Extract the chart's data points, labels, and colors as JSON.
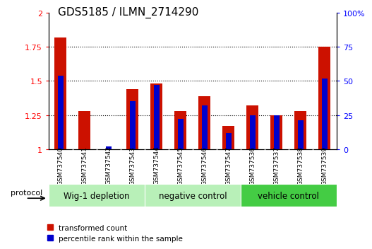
{
  "title": "GDS5185 / ILMN_2714290",
  "samples": [
    "GSM737540",
    "GSM737541",
    "GSM737542",
    "GSM737543",
    "GSM737544",
    "GSM737545",
    "GSM737546",
    "GSM737547",
    "GSM737536",
    "GSM737537",
    "GSM737538",
    "GSM737539"
  ],
  "transformed_count": [
    1.82,
    1.28,
    1.0,
    1.44,
    1.48,
    1.28,
    1.39,
    1.17,
    1.32,
    1.25,
    1.28,
    1.75
  ],
  "percentile_rank": [
    0.54,
    0.0,
    0.02,
    0.35,
    0.47,
    0.22,
    0.32,
    0.12,
    0.25,
    0.25,
    0.21,
    0.52
  ],
  "ylim_left": [
    1.0,
    2.0
  ],
  "ylim_right": [
    0.0,
    1.0
  ],
  "yticks_left": [
    1.0,
    1.25,
    1.5,
    1.75,
    2.0
  ],
  "yticks_right": [
    0.0,
    0.25,
    0.5,
    0.75,
    1.0
  ],
  "ytick_labels_left": [
    "1",
    "1.25",
    "1.5",
    "1.75",
    "2"
  ],
  "ytick_labels_right": [
    "0",
    "25",
    "50",
    "75",
    "100%"
  ],
  "bar_color_red": "#cc1100",
  "bar_color_blue": "#0000cc",
  "bar_width": 0.5,
  "blue_bar_width": 0.25,
  "protocol_label": "protocol",
  "legend_red": "transformed count",
  "legend_blue": "percentile rank within the sample",
  "tick_label_area_color": "#d0d0d0",
  "group_configs": [
    {
      "label": "Wig-1 depletion",
      "start": 0,
      "end": 4,
      "color": "#b8f0b8"
    },
    {
      "label": "negative control",
      "start": 4,
      "end": 8,
      "color": "#b8f0b8"
    },
    {
      "label": "vehicle control",
      "start": 8,
      "end": 12,
      "color": "#44cc44"
    }
  ],
  "title_fontsize": 11,
  "tick_fontsize": 8,
  "sample_fontsize": 6.5,
  "group_label_fontsize": 8.5,
  "legend_fontsize": 7.5
}
